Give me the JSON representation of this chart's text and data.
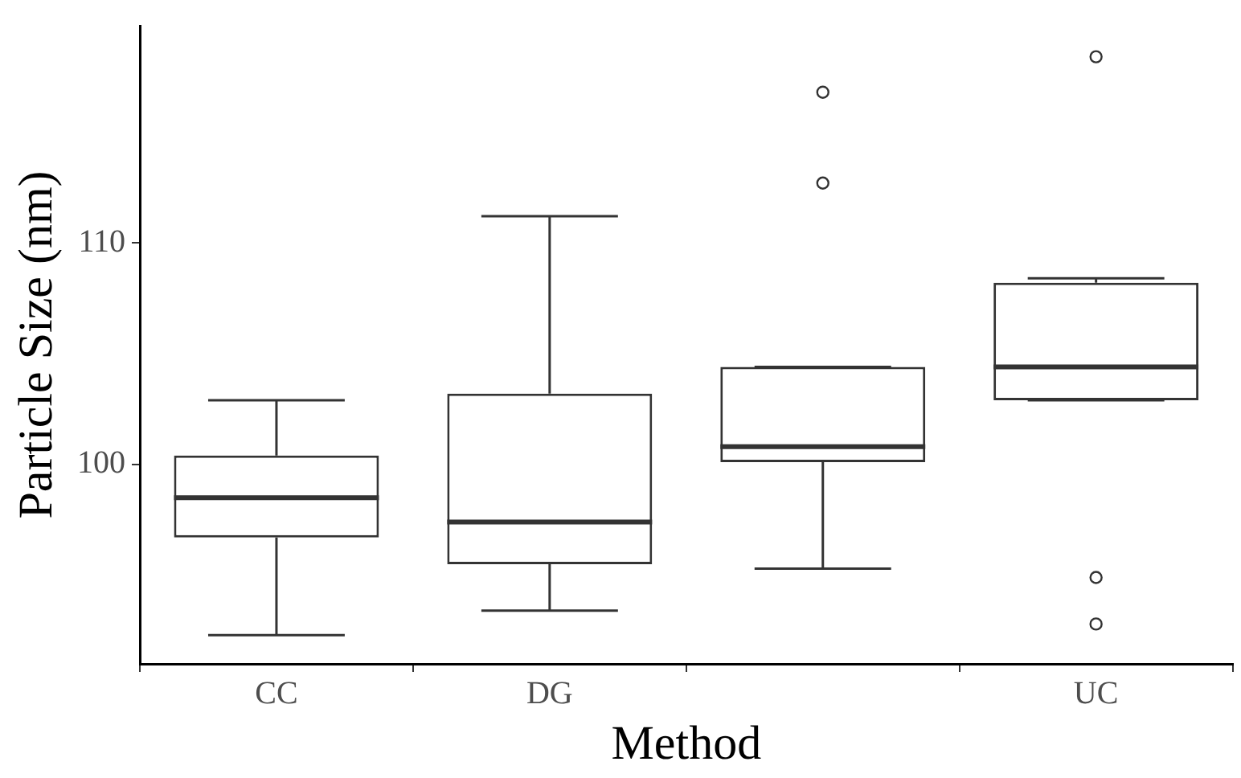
{
  "chart_data": {
    "type": "box",
    "xlabel": "Method",
    "ylabel": "Particle Size (nm)",
    "categories": [
      "CC",
      "DG",
      null,
      "UC"
    ],
    "boxes": [
      {
        "low": 92.3,
        "q1": 96.7,
        "median": 98.5,
        "q3": 100.4,
        "high": 102.9
      },
      {
        "low": 93.4,
        "q1": 95.5,
        "median": 97.4,
        "q3": 103.2,
        "high": 111.2
      },
      {
        "low": 95.3,
        "q1": 100.1,
        "median": 100.8,
        "q3": 104.4,
        "high": 104.4,
        "outliers": [
          112.7,
          116.8
        ]
      },
      {
        "low": 102.9,
        "q1": 102.9,
        "median": 104.4,
        "q3": 108.2,
        "high": 108.4,
        "outliers": [
          92.8,
          94.9,
          118.4
        ]
      }
    ],
    "color": "#333333",
    "ylim": [
      91,
      119.8
    ],
    "yticks": [
      100,
      110
    ],
    "grid": false,
    "legend": false
  }
}
